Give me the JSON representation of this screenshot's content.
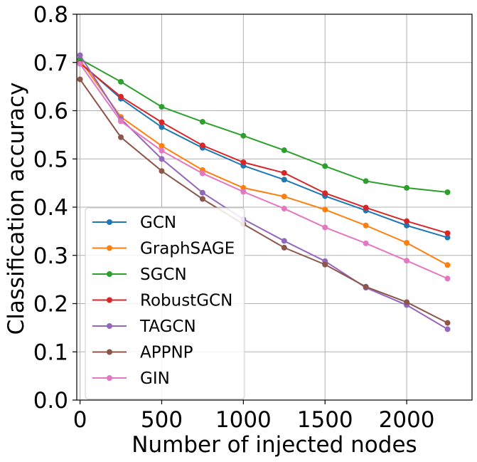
{
  "chart_data": {
    "type": "line",
    "xlabel": "Number of injected nodes",
    "ylabel": "Classification accuracy",
    "xlim": [
      -20,
      2400
    ],
    "ylim": [
      0.0,
      0.8
    ],
    "xticks": [
      0,
      500,
      1000,
      1500,
      2000
    ],
    "xtick_labels": [
      "0",
      "500",
      "1000",
      "1500",
      "2000"
    ],
    "yticks": [
      0.0,
      0.1,
      0.2,
      0.3,
      0.4,
      0.5,
      0.6,
      0.7,
      0.8
    ],
    "ytick_labels": [
      "0.0",
      "0.1",
      "0.2",
      "0.3",
      "0.4",
      "0.5",
      "0.6",
      "0.7",
      "0.8"
    ],
    "grid": true,
    "legend_position": "lower-left",
    "x": [
      0,
      250,
      500,
      750,
      1000,
      1250,
      1500,
      1750,
      2000,
      2250
    ],
    "series": [
      {
        "name": "GCN",
        "color": "#1f77b4",
        "values": [
          0.7,
          0.625,
          0.566,
          0.523,
          0.486,
          0.457,
          0.423,
          0.393,
          0.362,
          0.337
        ]
      },
      {
        "name": "GraphSAGE",
        "color": "#ff7f0e",
        "values": [
          0.705,
          0.587,
          0.527,
          0.477,
          0.44,
          0.422,
          0.395,
          0.362,
          0.326,
          0.28
        ]
      },
      {
        "name": "SGCN",
        "color": "#2ca02c",
        "values": [
          0.707,
          0.66,
          0.608,
          0.577,
          0.548,
          0.518,
          0.485,
          0.454,
          0.44,
          0.431
        ]
      },
      {
        "name": "RobustGCN",
        "color": "#d62728",
        "values": [
          0.698,
          0.629,
          0.576,
          0.528,
          0.493,
          0.471,
          0.429,
          0.399,
          0.371,
          0.346
        ]
      },
      {
        "name": "TAGCN",
        "color": "#9467bd",
        "values": [
          0.715,
          0.583,
          0.5,
          0.43,
          0.375,
          0.33,
          0.288,
          0.233,
          0.197,
          0.147
        ]
      },
      {
        "name": "APPNP",
        "color": "#8c564b",
        "values": [
          0.665,
          0.545,
          0.475,
          0.417,
          0.365,
          0.316,
          0.281,
          0.235,
          0.203,
          0.16
        ]
      },
      {
        "name": "GIN",
        "color": "#e377c2",
        "values": [
          0.697,
          0.578,
          0.517,
          0.47,
          0.432,
          0.397,
          0.358,
          0.325,
          0.289,
          0.252
        ]
      }
    ]
  }
}
